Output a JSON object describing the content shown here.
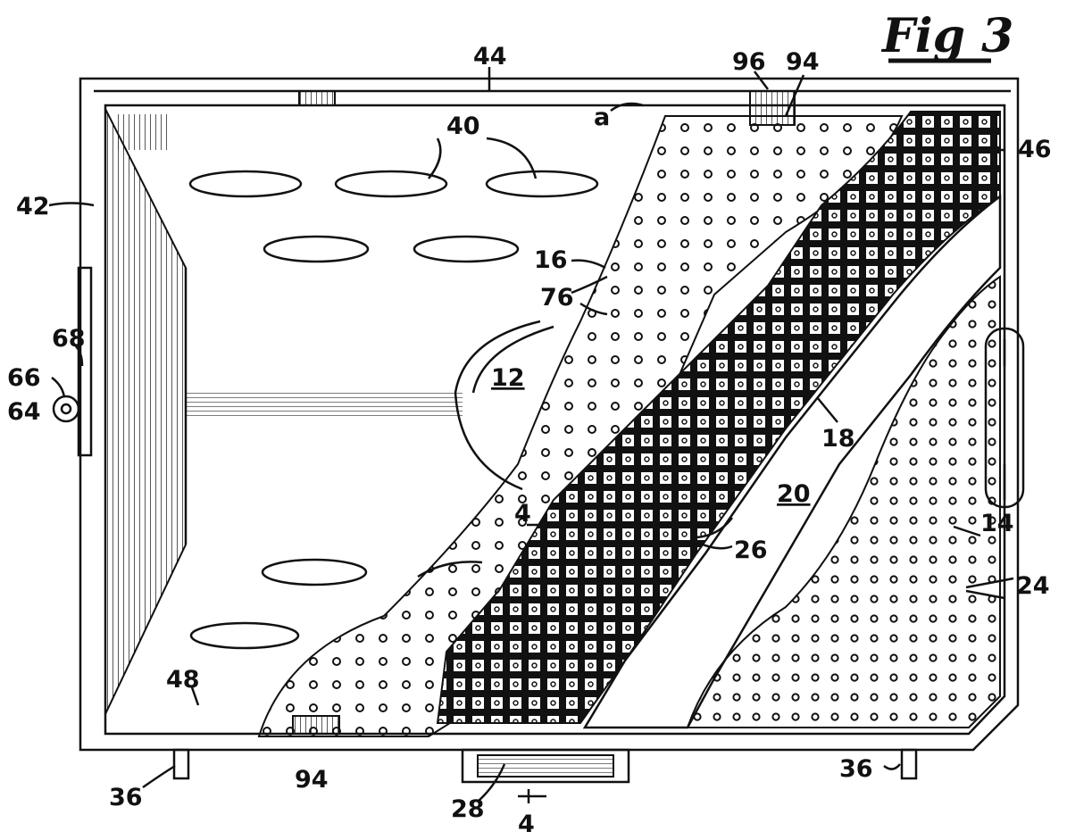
{
  "figure": {
    "title": "Fig 3"
  },
  "labels": {
    "ref_44": "44",
    "ref_96": "96",
    "ref_94_top": "94",
    "ref_a": "a",
    "ref_46": "46",
    "ref_40": "40",
    "ref_42": "42",
    "ref_16": "16",
    "ref_76": "76",
    "ref_68": "68",
    "ref_66": "66",
    "ref_64": "64",
    "ref_12": "12",
    "ref_18": "18",
    "ref_20": "20",
    "ref_4_left": "4",
    "ref_26": "26",
    "ref_14": "14",
    "ref_24": "24",
    "ref_48": "48",
    "ref_94_bottom": "94",
    "ref_36_left": "36",
    "ref_36_right": "36",
    "ref_28": "28",
    "ref_4_bottom": "4"
  },
  "colors": {
    "ink": "#111111",
    "paper": "#ffffff"
  }
}
